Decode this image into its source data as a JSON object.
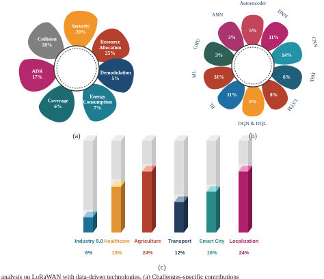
{
  "panels": {
    "a": "(a)",
    "b": "(b)",
    "c": "(c)"
  },
  "caption": "re analysis on LoRaWAN with data-driven technologies. (a) Challenges-specific contributions",
  "chart_data": [
    {
      "type": "pie",
      "panel": "(a)",
      "labels": [
        "Security",
        "Resource Allocation",
        "Demodulation",
        "Energy Consumption",
        "Coverage",
        "ADR",
        "Collision"
      ],
      "values": [
        20,
        25,
        5,
        7,
        6,
        17,
        20
      ],
      "colors": [
        "#f0962a",
        "#b4412e",
        "#1f4a73",
        "#1f7d92",
        "#1d6b73",
        "#b4286c",
        "#808080"
      ],
      "label_lines": [
        [
          "Security",
          "20%"
        ],
        [
          "Resource",
          "Allocation",
          "25%"
        ],
        [
          "Demodulation",
          "5%"
        ],
        [
          "Energy",
          "Consumption",
          "7%"
        ],
        [
          "Coverage",
          "6%"
        ],
        [
          "ADR",
          "17%"
        ],
        [
          "Collision",
          "20%"
        ]
      ]
    },
    {
      "type": "pie",
      "panel": "(b)",
      "labels": [
        "Autoencoder",
        "DNN",
        "CNN",
        "DRL",
        "LSTM",
        "DQN & DQL",
        "RL",
        "ML",
        "GRU",
        "ANN"
      ],
      "values": [
        5,
        11,
        14,
        6,
        8,
        8,
        11,
        31,
        3,
        3
      ],
      "value_labels": [
        "5%",
        "11%",
        "14%",
        "6%",
        "8%",
        "8%",
        "11%",
        "31%",
        "3%",
        "3%"
      ],
      "colors": [
        "#c2455b",
        "#b4286c",
        "#2493a7",
        "#1f5f7a",
        "#b4412e",
        "#f0962a",
        "#1f6fa5",
        "#b4412e",
        "#2f5f55",
        "#a9346e"
      ]
    },
    {
      "type": "bar",
      "panel": "(c)",
      "categories": [
        "Industry 5.0",
        "Healthcare",
        "Agriculture",
        "Transport",
        "Smart City",
        "Localization"
      ],
      "values": [
        6,
        18,
        24,
        12,
        16,
        24
      ],
      "value_labels": [
        "6%",
        "18%",
        "24%",
        "12%",
        "16%",
        "24%"
      ],
      "colors": [
        "#1f6e93",
        "#e09434",
        "#b4412e",
        "#233f5e",
        "#2a8a8a",
        "#b0206a"
      ],
      "ylim": [
        0,
        36
      ]
    }
  ]
}
